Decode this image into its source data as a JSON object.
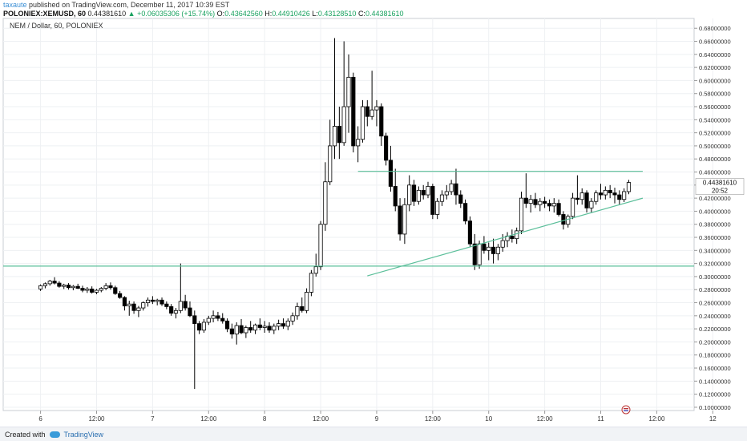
{
  "header": {
    "author": "taxaute",
    "published": " published on TradingView.com, December 11, 2017 10:39 EST",
    "symbol": "POLONIEX:XEMUSD, 60",
    "last": "0.44381610",
    "change_arrow": "▲",
    "change": "+0.06035306 (+15.74%)",
    "o_label": "O:",
    "o_value": "0.43642560",
    "h_label": "H:",
    "h_value": "0.44910426",
    "l_label": "L:",
    "l_value": "0.43128510",
    "c_label": "C:",
    "c_value": "0.44381610"
  },
  "chart_data": {
    "type": "candlestick",
    "title": "NEM / Dollar, 60, POLONIEX",
    "ylim": [
      0.095,
      0.695
    ],
    "y_ticks": [
      "0.68000000",
      "0.66000000",
      "0.64000000",
      "0.62000000",
      "0.60000000",
      "0.58000000",
      "0.56000000",
      "0.54000000",
      "0.52000000",
      "0.50000000",
      "0.48000000",
      "0.46000000",
      "0.44000000",
      "0.42000000",
      "0.40000000",
      "0.38000000",
      "0.36000000",
      "0.34000000",
      "0.32000000",
      "0.30000000",
      "0.28000000",
      "0.26000000",
      "0.24000000",
      "0.22000000",
      "0.20000000",
      "0.18000000",
      "0.16000000",
      "0.14000000",
      "0.12000000",
      "0.10000000"
    ],
    "x_tick_labels": [
      "6",
      "12:00",
      "7",
      "12:00",
      "8",
      "12:00",
      "9",
      "12:00",
      "10",
      "12:00",
      "11",
      "12:00",
      "12"
    ],
    "x_range_hours": [
      -8,
      140
    ],
    "price_label": "0.44381610",
    "time_label": "20:52",
    "candles": [
      [
        0.281,
        0.288,
        0.278,
        0.286
      ],
      [
        0.286,
        0.291,
        0.282,
        0.289
      ],
      [
        0.289,
        0.295,
        0.286,
        0.293
      ],
      [
        0.293,
        0.299,
        0.288,
        0.29
      ],
      [
        0.29,
        0.293,
        0.283,
        0.285
      ],
      [
        0.285,
        0.289,
        0.281,
        0.287
      ],
      [
        0.287,
        0.29,
        0.28,
        0.283
      ],
      [
        0.283,
        0.287,
        0.279,
        0.285
      ],
      [
        0.285,
        0.289,
        0.281,
        0.282
      ],
      [
        0.282,
        0.286,
        0.276,
        0.279
      ],
      [
        0.279,
        0.284,
        0.275,
        0.281
      ],
      [
        0.281,
        0.285,
        0.274,
        0.276
      ],
      [
        0.276,
        0.281,
        0.273,
        0.279
      ],
      [
        0.279,
        0.284,
        0.276,
        0.282
      ],
      [
        0.282,
        0.29,
        0.279,
        0.286
      ],
      [
        0.286,
        0.291,
        0.28,
        0.283
      ],
      [
        0.283,
        0.286,
        0.272,
        0.274
      ],
      [
        0.274,
        0.278,
        0.266,
        0.268
      ],
      [
        0.268,
        0.27,
        0.248,
        0.255
      ],
      [
        0.255,
        0.263,
        0.24,
        0.258
      ],
      [
        0.258,
        0.262,
        0.243,
        0.248
      ],
      [
        0.248,
        0.255,
        0.238,
        0.252
      ],
      [
        0.252,
        0.262,
        0.248,
        0.26
      ],
      [
        0.26,
        0.268,
        0.254,
        0.264
      ],
      [
        0.264,
        0.27,
        0.258,
        0.262
      ],
      [
        0.262,
        0.266,
        0.256,
        0.264
      ],
      [
        0.264,
        0.268,
        0.255,
        0.258
      ],
      [
        0.258,
        0.262,
        0.25,
        0.254
      ],
      [
        0.254,
        0.258,
        0.24,
        0.244
      ],
      [
        0.244,
        0.252,
        0.236,
        0.248
      ],
      [
        0.248,
        0.32,
        0.244,
        0.262
      ],
      [
        0.262,
        0.272,
        0.248,
        0.252
      ],
      [
        0.252,
        0.262,
        0.238,
        0.24
      ],
      [
        0.24,
        0.248,
        0.128,
        0.228
      ],
      [
        0.228,
        0.232,
        0.212,
        0.218
      ],
      [
        0.218,
        0.235,
        0.214,
        0.23
      ],
      [
        0.23,
        0.24,
        0.226,
        0.236
      ],
      [
        0.236,
        0.248,
        0.23,
        0.24
      ],
      [
        0.24,
        0.246,
        0.232,
        0.236
      ],
      [
        0.236,
        0.244,
        0.228,
        0.232
      ],
      [
        0.232,
        0.236,
        0.215,
        0.22
      ],
      [
        0.22,
        0.228,
        0.205,
        0.212
      ],
      [
        0.212,
        0.23,
        0.196,
        0.225
      ],
      [
        0.225,
        0.235,
        0.212,
        0.214
      ],
      [
        0.214,
        0.225,
        0.206,
        0.222
      ],
      [
        0.222,
        0.232,
        0.214,
        0.218
      ],
      [
        0.218,
        0.228,
        0.212,
        0.226
      ],
      [
        0.226,
        0.236,
        0.218,
        0.222
      ],
      [
        0.222,
        0.232,
        0.214,
        0.224
      ],
      [
        0.224,
        0.23,
        0.214,
        0.218
      ],
      [
        0.218,
        0.228,
        0.212,
        0.224
      ],
      [
        0.224,
        0.234,
        0.218,
        0.228
      ],
      [
        0.228,
        0.236,
        0.22,
        0.224
      ],
      [
        0.224,
        0.236,
        0.218,
        0.232
      ],
      [
        0.232,
        0.245,
        0.226,
        0.24
      ],
      [
        0.24,
        0.26,
        0.234,
        0.254
      ],
      [
        0.254,
        0.268,
        0.245,
        0.248
      ],
      [
        0.248,
        0.282,
        0.244,
        0.276
      ],
      [
        0.276,
        0.31,
        0.27,
        0.305
      ],
      [
        0.305,
        0.335,
        0.3,
        0.315
      ],
      [
        0.315,
        0.385,
        0.31,
        0.38
      ],
      [
        0.38,
        0.475,
        0.37,
        0.445
      ],
      [
        0.445,
        0.54,
        0.44,
        0.5
      ],
      [
        0.5,
        0.665,
        0.48,
        0.53
      ],
      [
        0.53,
        0.56,
        0.48,
        0.505
      ],
      [
        0.505,
        0.66,
        0.5,
        0.56
      ],
      [
        0.56,
        0.64,
        0.52,
        0.605
      ],
      [
        0.605,
        0.612,
        0.49,
        0.5
      ],
      [
        0.5,
        0.53,
        0.475,
        0.51
      ],
      [
        0.51,
        0.57,
        0.505,
        0.56
      ],
      [
        0.56,
        0.57,
        0.53,
        0.545
      ],
      [
        0.545,
        0.615,
        0.54,
        0.555
      ],
      [
        0.555,
        0.57,
        0.53,
        0.56
      ],
      [
        0.56,
        0.565,
        0.5,
        0.515
      ],
      [
        0.515,
        0.52,
        0.47,
        0.478
      ],
      [
        0.478,
        0.5,
        0.43,
        0.438
      ],
      [
        0.438,
        0.465,
        0.4,
        0.408
      ],
      [
        0.408,
        0.42,
        0.355,
        0.365
      ],
      [
        0.365,
        0.42,
        0.35,
        0.41
      ],
      [
        0.41,
        0.455,
        0.4,
        0.44
      ],
      [
        0.44,
        0.448,
        0.408,
        0.415
      ],
      [
        0.415,
        0.438,
        0.41,
        0.432
      ],
      [
        0.432,
        0.44,
        0.418,
        0.425
      ],
      [
        0.425,
        0.445,
        0.42,
        0.438
      ],
      [
        0.438,
        0.442,
        0.388,
        0.395
      ],
      [
        0.395,
        0.42,
        0.388,
        0.415
      ],
      [
        0.415,
        0.432,
        0.408,
        0.425
      ],
      [
        0.425,
        0.44,
        0.418,
        0.43
      ],
      [
        0.43,
        0.448,
        0.425,
        0.442
      ],
      [
        0.442,
        0.465,
        0.41,
        0.425
      ],
      [
        0.425,
        0.432,
        0.405,
        0.412
      ],
      [
        0.412,
        0.418,
        0.38,
        0.385
      ],
      [
        0.385,
        0.392,
        0.345,
        0.35
      ],
      [
        0.35,
        0.365,
        0.31,
        0.318
      ],
      [
        0.318,
        0.355,
        0.312,
        0.35
      ],
      [
        0.35,
        0.362,
        0.335,
        0.34
      ],
      [
        0.34,
        0.352,
        0.325,
        0.345
      ],
      [
        0.345,
        0.358,
        0.32,
        0.335
      ],
      [
        0.335,
        0.35,
        0.325,
        0.345
      ],
      [
        0.345,
        0.365,
        0.338,
        0.355
      ],
      [
        0.355,
        0.368,
        0.345,
        0.362
      ],
      [
        0.362,
        0.372,
        0.352,
        0.358
      ],
      [
        0.358,
        0.375,
        0.35,
        0.37
      ],
      [
        0.37,
        0.43,
        0.365,
        0.42
      ],
      [
        0.42,
        0.458,
        0.405,
        0.412
      ],
      [
        0.412,
        0.425,
        0.398,
        0.418
      ],
      [
        0.418,
        0.428,
        0.405,
        0.41
      ],
      [
        0.41,
        0.42,
        0.4,
        0.415
      ],
      [
        0.415,
        0.422,
        0.405,
        0.412
      ],
      [
        0.412,
        0.418,
        0.4,
        0.408
      ],
      [
        0.408,
        0.42,
        0.398,
        0.412
      ],
      [
        0.412,
        0.418,
        0.392,
        0.395
      ],
      [
        0.395,
        0.4,
        0.372,
        0.38
      ],
      [
        0.38,
        0.395,
        0.375,
        0.392
      ],
      [
        0.392,
        0.428,
        0.388,
        0.42
      ],
      [
        0.42,
        0.455,
        0.41,
        0.418
      ],
      [
        0.418,
        0.435,
        0.41,
        0.428
      ],
      [
        0.428,
        0.432,
        0.398,
        0.405
      ],
      [
        0.405,
        0.42,
        0.398,
        0.415
      ],
      [
        0.415,
        0.432,
        0.41,
        0.428
      ],
      [
        0.428,
        0.442,
        0.418,
        0.425
      ],
      [
        0.425,
        0.438,
        0.418,
        0.432
      ],
      [
        0.432,
        0.44,
        0.42,
        0.428
      ],
      [
        0.428,
        0.436,
        0.412,
        0.425
      ],
      [
        0.425,
        0.432,
        0.41,
        0.418
      ],
      [
        0.418,
        0.435,
        0.414,
        0.43
      ],
      [
        0.43,
        0.448,
        0.426,
        0.444
      ]
    ],
    "lines": [
      {
        "from": [
          -8,
          0.316
        ],
        "to": [
          140,
          0.316
        ],
        "color": "#5bbf9a"
      },
      {
        "from": [
          68,
          0.461
        ],
        "to": [
          129,
          0.461
        ],
        "color": "#5bbf9a"
      },
      {
        "from": [
          70,
          0.301
        ],
        "to": [
          129,
          0.42
        ],
        "color": "#5bbf9a"
      }
    ],
    "colors": {
      "up": "#ffffff",
      "down": "#000000",
      "wick": "#000000",
      "grid": "#eef0f3"
    }
  },
  "footer": {
    "created": "Created with",
    "brand": "TradingView"
  }
}
